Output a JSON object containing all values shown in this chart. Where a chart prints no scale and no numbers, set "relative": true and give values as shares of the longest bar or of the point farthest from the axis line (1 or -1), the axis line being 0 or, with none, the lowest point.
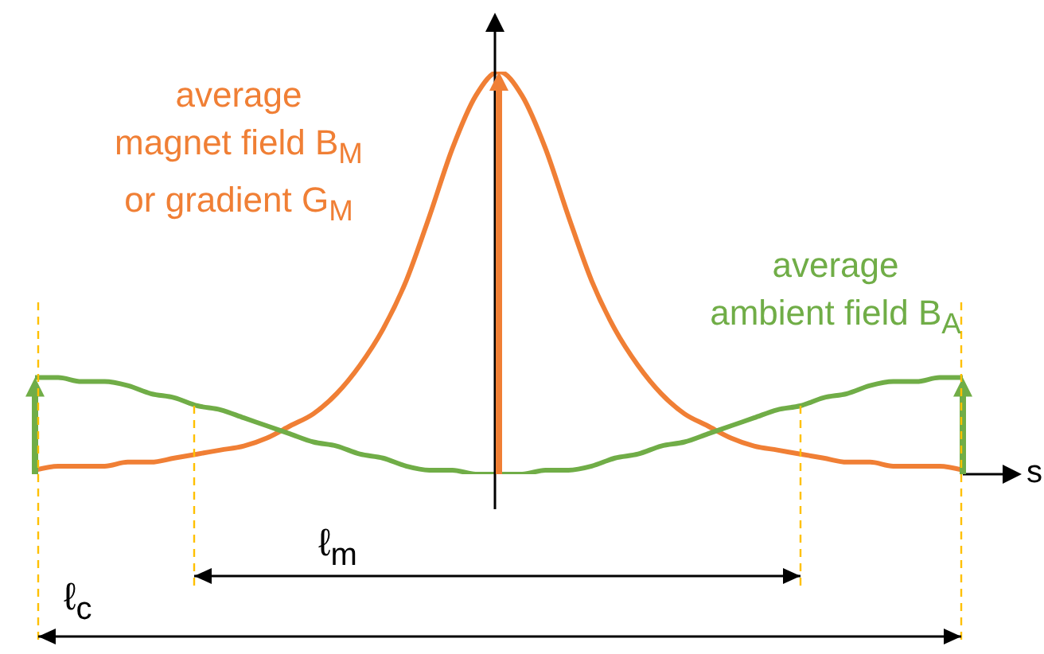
{
  "chart_data": {
    "type": "line",
    "relative": true,
    "xlabel": "s",
    "marker": "none",
    "categories": [
      null,
      null,
      null,
      null,
      null,
      null,
      null,
      null,
      null,
      null,
      null,
      null,
      null,
      null,
      null,
      null,
      null,
      null,
      null,
      null,
      null,
      null,
      null,
      null,
      null,
      null,
      null,
      null,
      null,
      null,
      null,
      null,
      null,
      null,
      null,
      null,
      null,
      null,
      null,
      null,
      null
    ],
    "series": [
      {
        "color": "#f07f35",
        "values": [
          0.01,
          0.02,
          0.02,
          0.02,
          0.03,
          0.03,
          0.04,
          0.05,
          0.06,
          0.07,
          0.09,
          0.12,
          0.15,
          0.2,
          0.27,
          0.36,
          0.48,
          0.64,
          0.81,
          0.94,
          1,
          0.94,
          0.81,
          0.64,
          0.48,
          0.36,
          0.27,
          0.2,
          0.15,
          0.12,
          0.09,
          0.07,
          0.06,
          0.05,
          0.04,
          0.03,
          0.03,
          0.02,
          0.02,
          0.02,
          0.01
        ]
      },
      {
        "color": "#70ad47",
        "values": [
          0.24,
          0.24,
          0.23,
          0.23,
          0.22,
          0.2,
          0.19,
          0.17,
          0.16,
          0.14,
          0.12,
          0.1,
          0.08,
          0.07,
          0.05,
          0.04,
          0.02,
          0.01,
          0.01,
          0,
          0,
          0,
          0.01,
          0.01,
          0.02,
          0.04,
          0.05,
          0.07,
          0.08,
          0.1,
          0.12,
          0.14,
          0.16,
          0.17,
          0.19,
          0.2,
          0.22,
          0.23,
          0.23,
          0.24,
          0.24
        ]
      }
    ],
    "annotations": [
      "average\nmagnet field B$_{M}$\nor gradient G$_{M}$",
      "average\nambient field B$_{A}$",
      "ℓ$_{m}$",
      "ℓ$_{c}$"
    ]
  }
}
